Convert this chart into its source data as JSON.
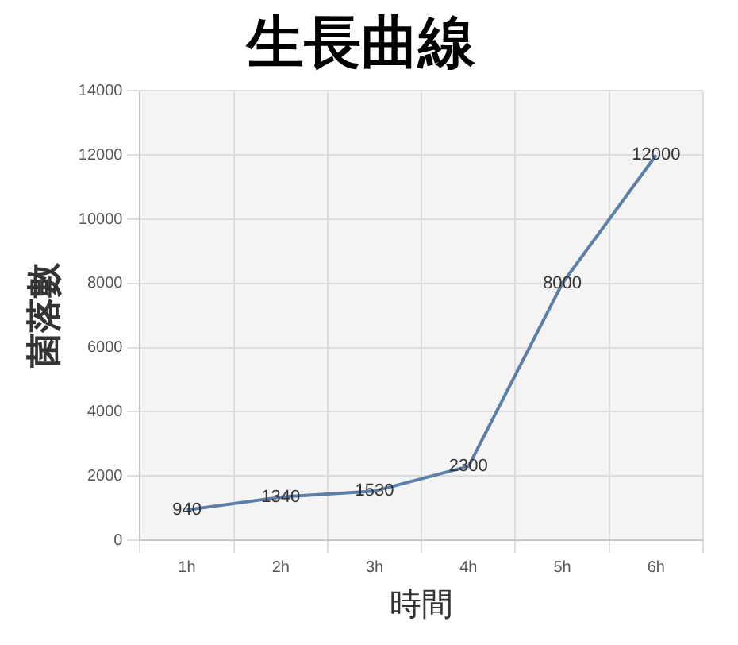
{
  "chart_data": {
    "type": "line",
    "title": "生長曲線",
    "xlabel": "時間",
    "ylabel": "菌落數",
    "categories": [
      "1h",
      "2h",
      "3h",
      "4h",
      "5h",
      "6h"
    ],
    "series": [
      {
        "color": "#5b7fa6",
        "values": [
          940,
          1340,
          1530,
          2300,
          8000,
          12000
        ]
      }
    ],
    "ylim": [
      0,
      14000
    ],
    "yticks": [
      0,
      2000,
      4000,
      6000,
      8000,
      10000,
      12000,
      14000
    ],
    "grid": true,
    "legend": false,
    "marker": "none",
    "line_style": "solid",
    "data_labels": true
  }
}
